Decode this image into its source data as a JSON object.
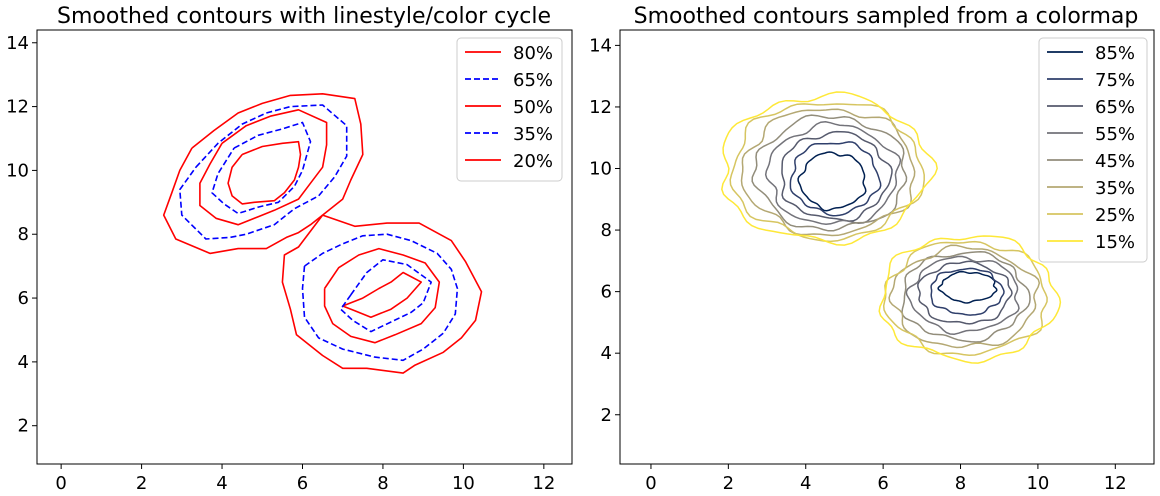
{
  "chart_data": [
    {
      "type": "contour",
      "title": "Smoothed contours with linestyle/color cycle",
      "xlim": [
        -0.6,
        12.7
      ],
      "ylim": [
        0.8,
        14.4
      ],
      "xticks": [
        0,
        2,
        4,
        6,
        8,
        10,
        12
      ],
      "yticks": [
        2,
        4,
        6,
        8,
        10,
        12,
        14
      ],
      "legend_position": "top-right",
      "series": [
        {
          "name": "80%",
          "color": "#ff0000",
          "dash": "solid",
          "paths": [
            [
              [
                4.5,
                10.5
              ],
              [
                5.0,
                10.75
              ],
              [
                5.5,
                10.85
              ],
              [
                5.9,
                10.9
              ],
              [
                5.95,
                10.5
              ],
              [
                5.9,
                10.1
              ],
              [
                5.8,
                9.7
              ],
              [
                5.55,
                9.3
              ],
              [
                5.3,
                9.05
              ],
              [
                4.8,
                9.0
              ],
              [
                4.5,
                8.95
              ],
              [
                4.25,
                9.2
              ],
              [
                4.15,
                9.6
              ],
              [
                4.25,
                10.1
              ],
              [
                4.5,
                10.5
              ]
            ],
            [
              [
                7.5,
                6.0
              ],
              [
                7.9,
                6.3
              ],
              [
                8.2,
                6.5
              ],
              [
                8.5,
                6.8
              ],
              [
                8.95,
                6.5
              ],
              [
                8.6,
                6.0
              ],
              [
                8.2,
                5.65
              ],
              [
                7.7,
                5.4
              ],
              [
                7.3,
                5.6
              ],
              [
                7.0,
                5.75
              ],
              [
                7.5,
                6.0
              ]
            ]
          ]
        },
        {
          "name": "65%",
          "color": "#0000ff",
          "dash": "dashed",
          "paths": [
            [
              [
                4.3,
                10.7
              ],
              [
                4.9,
                11.1
              ],
              [
                5.5,
                11.3
              ],
              [
                6.0,
                11.5
              ],
              [
                6.2,
                10.9
              ],
              [
                6.0,
                10.0
              ],
              [
                5.8,
                9.5
              ],
              [
                5.4,
                9.0
              ],
              [
                4.9,
                8.85
              ],
              [
                4.4,
                8.65
              ],
              [
                4.05,
                8.95
              ],
              [
                3.75,
                9.3
              ],
              [
                3.9,
                9.9
              ],
              [
                4.3,
                10.7
              ]
            ],
            [
              [
                7.2,
                6.1
              ],
              [
                7.6,
                6.8
              ],
              [
                8.0,
                7.2
              ],
              [
                8.6,
                7.05
              ],
              [
                9.2,
                6.5
              ],
              [
                9.0,
                5.85
              ],
              [
                8.7,
                5.55
              ],
              [
                8.2,
                5.25
              ],
              [
                7.7,
                4.95
              ],
              [
                7.25,
                5.3
              ],
              [
                6.95,
                5.65
              ],
              [
                7.2,
                6.1
              ]
            ]
          ]
        },
        {
          "name": "50%",
          "color": "#ff0000",
          "dash": "solid",
          "paths": [
            [
              [
                4.0,
                10.85
              ],
              [
                4.6,
                11.4
              ],
              [
                5.2,
                11.7
              ],
              [
                5.9,
                11.9
              ],
              [
                6.6,
                11.5
              ],
              [
                6.6,
                10.8
              ],
              [
                6.5,
                10.1
              ],
              [
                6.2,
                9.6
              ],
              [
                5.9,
                9.1
              ],
              [
                5.3,
                8.75
              ],
              [
                4.9,
                8.55
              ],
              [
                4.4,
                8.3
              ],
              [
                3.85,
                8.5
              ],
              [
                3.45,
                8.9
              ],
              [
                3.45,
                9.6
              ],
              [
                3.7,
                10.2
              ],
              [
                4.0,
                10.85
              ]
            ],
            [
              [
                6.55,
                6.3
              ],
              [
                6.9,
                6.95
              ],
              [
                7.4,
                7.35
              ],
              [
                7.9,
                7.55
              ],
              [
                8.5,
                7.35
              ],
              [
                9.05,
                7.1
              ],
              [
                9.4,
                6.5
              ],
              [
                9.3,
                5.7
              ],
              [
                8.95,
                5.2
              ],
              [
                8.3,
                4.85
              ],
              [
                7.8,
                4.6
              ],
              [
                7.2,
                4.8
              ],
              [
                6.75,
                5.2
              ],
              [
                6.55,
                5.75
              ],
              [
                6.55,
                6.3
              ]
            ]
          ]
        },
        {
          "name": "35%",
          "color": "#0000ff",
          "dash": "dashed",
          "paths": [
            [
              [
                3.35,
                10.1
              ],
              [
                3.9,
                10.85
              ],
              [
                4.5,
                11.45
              ],
              [
                5.1,
                11.8
              ],
              [
                5.7,
                12.0
              ],
              [
                6.5,
                12.05
              ],
              [
                7.1,
                11.4
              ],
              [
                7.1,
                10.45
              ],
              [
                6.8,
                9.8
              ],
              [
                6.4,
                9.2
              ],
              [
                5.8,
                8.8
              ],
              [
                5.3,
                8.3
              ],
              [
                4.6,
                8.0
              ],
              [
                4.2,
                7.9
              ],
              [
                3.6,
                7.85
              ],
              [
                3.0,
                8.6
              ],
              [
                2.95,
                9.4
              ],
              [
                3.35,
                10.1
              ]
            ],
            [
              [
                6.05,
                7.0
              ],
              [
                6.5,
                7.4
              ],
              [
                7.0,
                7.7
              ],
              [
                7.5,
                7.95
              ],
              [
                8.1,
                8.0
              ],
              [
                8.7,
                7.8
              ],
              [
                9.35,
                7.4
              ],
              [
                9.7,
                6.9
              ],
              [
                9.85,
                6.3
              ],
              [
                9.8,
                5.5
              ],
              [
                9.5,
                4.9
              ],
              [
                9.0,
                4.4
              ],
              [
                8.5,
                4.05
              ],
              [
                7.8,
                4.15
              ],
              [
                7.0,
                4.4
              ],
              [
                6.4,
                4.75
              ],
              [
                6.05,
                5.4
              ],
              [
                6.0,
                6.3
              ],
              [
                6.05,
                7.0
              ]
            ]
          ]
        },
        {
          "name": "20%",
          "color": "#ff0000",
          "dash": "solid",
          "paths": [
            [
              [
                3.25,
                10.7
              ],
              [
                3.8,
                11.25
              ],
              [
                4.4,
                11.8
              ],
              [
                5.0,
                12.1
              ],
              [
                5.7,
                12.35
              ],
              [
                6.5,
                12.4
              ],
              [
                7.3,
                12.25
              ],
              [
                7.45,
                11.45
              ],
              [
                7.5,
                10.5
              ],
              [
                7.2,
                9.7
              ],
              [
                7.0,
                9.1
              ],
              [
                6.5,
                8.6
              ],
              [
                6.2,
                8.3
              ],
              [
                5.9,
                8.05
              ],
              [
                5.6,
                7.9
              ],
              [
                5.1,
                7.55
              ],
              [
                4.4,
                7.55
              ],
              [
                3.7,
                7.4
              ],
              [
                2.85,
                7.85
              ],
              [
                2.55,
                8.6
              ],
              [
                2.75,
                9.3
              ],
              [
                2.95,
                10.0
              ],
              [
                3.25,
                10.7
              ]
            ],
            [
              [
                6.5,
                8.6
              ],
              [
                7.3,
                8.25
              ],
              [
                8.1,
                8.35
              ],
              [
                8.9,
                8.35
              ],
              [
                9.7,
                7.8
              ],
              [
                10.05,
                7.15
              ],
              [
                10.45,
                6.2
              ],
              [
                10.3,
                5.3
              ],
              [
                9.95,
                4.75
              ],
              [
                9.5,
                4.3
              ],
              [
                8.8,
                3.9
              ],
              [
                8.5,
                3.65
              ],
              [
                7.6,
                3.8
              ],
              [
                7.0,
                3.8
              ],
              [
                6.5,
                4.2
              ],
              [
                5.85,
                4.85
              ],
              [
                5.7,
                5.65
              ],
              [
                5.5,
                6.5
              ],
              [
                5.55,
                7.35
              ],
              [
                5.9,
                7.6
              ],
              [
                6.5,
                8.6
              ]
            ]
          ]
        }
      ]
    },
    {
      "type": "contour",
      "title": "Smoothed contours sampled from a colormap",
      "xlim": [
        -0.8,
        13.0
      ],
      "ylim": [
        0.4,
        14.5
      ],
      "xticks": [
        0,
        2,
        4,
        6,
        8,
        10,
        12
      ],
      "yticks": [
        2,
        4,
        6,
        8,
        10,
        12,
        14
      ],
      "legend_position": "top-right",
      "series": [
        {
          "name": "85%",
          "color": "#002051",
          "cx1": 4.7,
          "cy1": 9.6,
          "rx1": 1.08,
          "ry1": 1.52,
          "cx2": 8.2,
          "cy2": 6.15,
          "rx2": 1.0,
          "ry2": 0.78
        },
        {
          "name": "75%",
          "color": "#2f3f6b",
          "cx1": 4.75,
          "cy1": 9.7,
          "rx1": 1.45,
          "ry1": 1.95,
          "cx2": 8.15,
          "cy2": 6.0,
          "rx2": 1.3,
          "ry2": 1.2
        },
        {
          "name": "65%",
          "color": "#565a6d",
          "cx1": 4.75,
          "cy1": 9.75,
          "rx1": 1.8,
          "ry1": 2.35,
          "cx2": 8.1,
          "cy2": 5.95,
          "rx2": 1.65,
          "ry2": 1.6
        },
        {
          "name": "55%",
          "color": "#73737a",
          "cx1": 4.7,
          "cy1": 9.8,
          "rx1": 2.15,
          "ry1": 2.7,
          "cx2": 8.1,
          "cy2": 5.9,
          "rx2": 1.95,
          "ry2": 1.95
        },
        {
          "name": "45%",
          "color": "#928d7b",
          "cx1": 4.65,
          "cy1": 9.85,
          "rx1": 2.5,
          "ry1": 3.05,
          "cx2": 8.1,
          "cy2": 5.85,
          "rx2": 2.25,
          "ry2": 2.3
        },
        {
          "name": "35%",
          "color": "#b4a873",
          "cx1": 4.6,
          "cy1": 9.9,
          "rx1": 2.85,
          "ry1": 3.4,
          "cx2": 8.1,
          "cy2": 5.8,
          "rx2": 2.6,
          "ry2": 2.6
        },
        {
          "name": "25%",
          "color": "#d6c561",
          "cx1": 4.55,
          "cy1": 9.95,
          "rx1": 3.15,
          "ry1": 3.7,
          "cx2": 8.15,
          "cy2": 5.8,
          "rx2": 2.9,
          "ry2": 2.95
        },
        {
          "name": "15%",
          "color": "#fee838",
          "cx1": 4.5,
          "cy1": 10.0,
          "rx1": 3.45,
          "ry1": 3.95,
          "cx2": 8.2,
          "cy2": 5.8,
          "rx2": 3.15,
          "ry2": 3.25
        }
      ]
    }
  ]
}
